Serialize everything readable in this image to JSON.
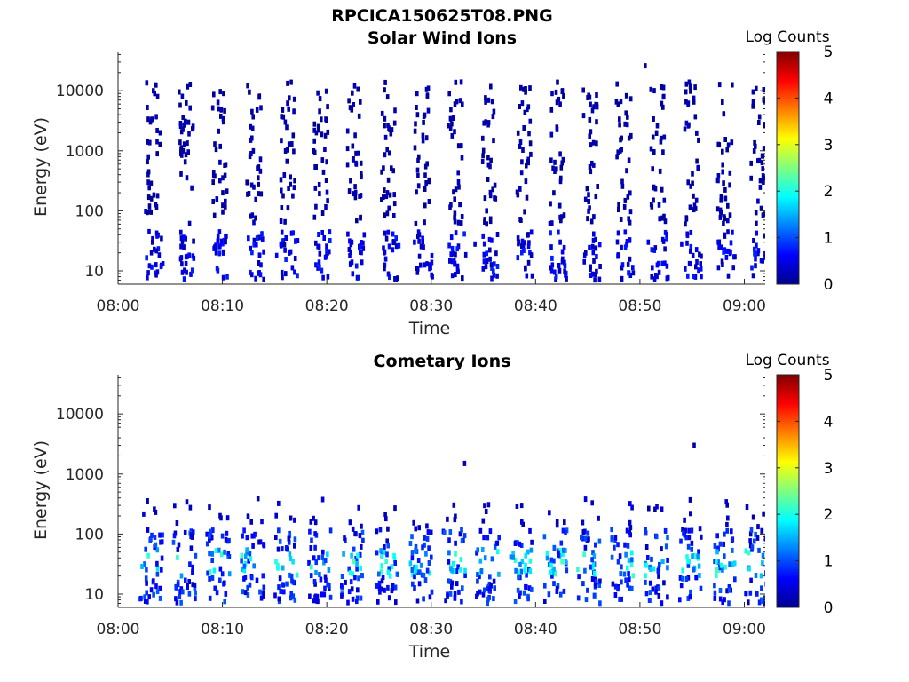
{
  "figure": {
    "title": "RPCICA150625T08.PNG"
  },
  "chart_data": [
    {
      "type": "heatmap",
      "title": "Solar Wind Ions",
      "xlabel": "Time",
      "ylabel": "Energy (eV)",
      "x_ticks": [
        "08:00",
        "08:10",
        "08:20",
        "08:30",
        "08:40",
        "08:50",
        "09:00"
      ],
      "y_ticks": [
        "10",
        "100",
        "1000",
        "10000"
      ],
      "y_scale": "log",
      "ylim": [
        6,
        45000
      ],
      "xlim_minutes": [
        0,
        62
      ],
      "colorbar": {
        "label": "Log Counts",
        "ticks": [
          "0",
          "1",
          "2",
          "3",
          "4",
          "5"
        ],
        "range": [
          0,
          5
        ],
        "colormap": "jet"
      },
      "sweep_minutes": [
        3.2,
        6.4,
        9.6,
        12.9,
        16.1,
        19.3,
        22.5,
        25.8,
        29.0,
        32.2,
        35.4,
        38.7,
        41.9,
        45.1,
        48.3,
        51.6,
        54.8,
        58.0,
        61.2
      ],
      "cells": [
        {
          "t": 3.2,
          "e": 20,
          "v": 0.3
        },
        {
          "t": 3.3,
          "e": 30,
          "v": 0.3
        },
        {
          "t": 3.2,
          "e": 3300,
          "v": 0.2
        },
        {
          "t": 3.5,
          "e": 9000,
          "v": 0.2
        },
        {
          "t": 6.3,
          "e": 25,
          "v": 0.3
        },
        {
          "t": 6.5,
          "e": 3000,
          "v": 0.2
        },
        {
          "t": 9.4,
          "e": 20,
          "v": 0.3
        },
        {
          "t": 9.6,
          "e": 5000,
          "v": 0.2
        },
        {
          "t": 15.2,
          "e": 18,
          "v": 0.6
        },
        {
          "t": 15.6,
          "e": 28,
          "v": 0.6
        },
        {
          "t": 16.0,
          "e": 22,
          "v": 0.6
        },
        {
          "t": 19.0,
          "e": 2000,
          "v": 0.2
        },
        {
          "t": 22.4,
          "e": 30,
          "v": 0.5
        },
        {
          "t": 25.5,
          "e": 20,
          "v": 0.5
        },
        {
          "t": 28.4,
          "e": 30,
          "v": 0.5
        },
        {
          "t": 34.2,
          "e": 28,
          "v": 0.4
        },
        {
          "t": 41.5,
          "e": 25,
          "v": 0.5
        },
        {
          "t": 50.8,
          "e": 30,
          "v": 0.5
        },
        {
          "t": 54.0,
          "e": 28,
          "v": 0.5
        },
        {
          "t": 57.5,
          "e": 30,
          "v": 0.5
        },
        {
          "t": 50.5,
          "e": 26000,
          "v": 0.2
        }
      ]
    },
    {
      "type": "heatmap",
      "title": "Cometary Ions",
      "xlabel": "Time",
      "ylabel": "Energy (eV)",
      "x_ticks": [
        "08:00",
        "08:10",
        "08:20",
        "08:30",
        "08:40",
        "08:50",
        "09:00"
      ],
      "y_ticks": [
        "10",
        "100",
        "1000",
        "10000"
      ],
      "y_scale": "log",
      "ylim": [
        6,
        45000
      ],
      "xlim_minutes": [
        0,
        62
      ],
      "colorbar": {
        "label": "Log Counts",
        "ticks": [
          "0",
          "1",
          "2",
          "3",
          "4",
          "5"
        ],
        "range": [
          0,
          5
        ],
        "colormap": "jet"
      },
      "sweep_minutes": [
        3.2,
        6.4,
        9.6,
        12.9,
        16.1,
        19.3,
        22.5,
        25.8,
        29.0,
        32.2,
        35.4,
        38.7,
        41.9,
        45.1,
        48.3,
        51.6,
        54.8,
        58.0,
        61.2
      ],
      "cells": [
        {
          "t": 15.3,
          "e": 30,
          "v": 2.0
        },
        {
          "t": 22.6,
          "e": 35,
          "v": 2.3
        },
        {
          "t": 28.5,
          "e": 25,
          "v": 1.8
        },
        {
          "t": 41.5,
          "e": 30,
          "v": 1.9
        },
        {
          "t": 50.6,
          "e": 30,
          "v": 1.9
        },
        {
          "t": 54.6,
          "e": 35,
          "v": 1.9
        },
        {
          "t": 57.8,
          "e": 30,
          "v": 1.9
        },
        {
          "t": 33.2,
          "e": 1500,
          "v": 0.3
        },
        {
          "t": 55.2,
          "e": 3000,
          "v": 0.2
        }
      ]
    }
  ]
}
